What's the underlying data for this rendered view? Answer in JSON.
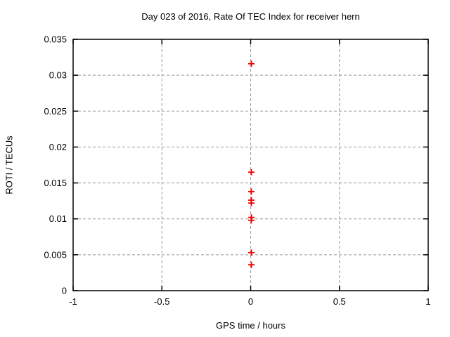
{
  "chart_data": {
    "type": "scatter",
    "title": "Day 023 of 2016, Rate Of TEC Index for receiver hern",
    "xlabel": "GPS time / hours",
    "ylabel": "ROTI / TECUs",
    "xlim": [
      -1,
      1
    ],
    "ylim": [
      0,
      0.035
    ],
    "x_ticks": [
      -1,
      -0.5,
      0,
      0.5,
      1
    ],
    "x_tick_labels": [
      "-1",
      "-0.5",
      "0",
      "0.5",
      "1"
    ],
    "y_ticks": [
      0,
      0.005,
      0.01,
      0.015,
      0.02,
      0.025,
      0.03,
      0.035
    ],
    "y_tick_labels": [
      "0",
      "0.005",
      "0.01",
      "0.015",
      "0.02",
      "0.025",
      "0.03",
      "0.035"
    ],
    "grid": true,
    "legend": "none",
    "marker": "plus",
    "marker_color": "#ee0000",
    "grid_color": "#989898",
    "border_color": "#000000",
    "series": [
      {
        "name": "ROTI",
        "points": [
          {
            "x": 0.004,
            "y": 0.0316
          },
          {
            "x": 0.004,
            "y": 0.0165
          },
          {
            "x": 0.004,
            "y": 0.0138
          },
          {
            "x": 0.004,
            "y": 0.0126
          },
          {
            "x": 0.004,
            "y": 0.0122
          },
          {
            "x": 0.004,
            "y": 0.0102
          },
          {
            "x": 0.004,
            "y": 0.0098
          },
          {
            "x": 0.004,
            "y": 0.0053
          },
          {
            "x": 0.004,
            "y": 0.0036
          }
        ]
      }
    ]
  }
}
